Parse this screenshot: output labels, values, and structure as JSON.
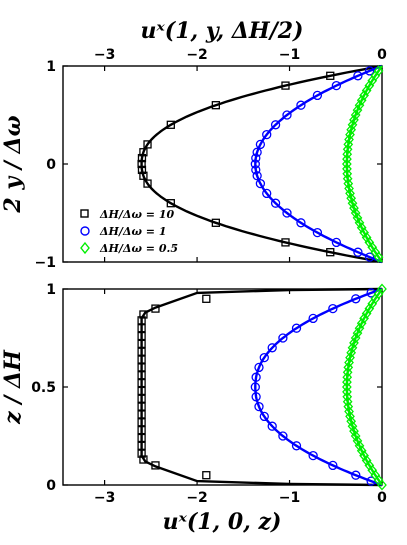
{
  "figure_labels": {
    "top_xlabel": "uˣ(1, y, ΔH/2)",
    "top_ylabel": "2 y / Δω",
    "bottom_xlabel": "uˣ(1, 0, z)",
    "bottom_ylabel": "z / ΔH"
  },
  "legend": {
    "items": [
      {
        "label": "ΔH/Δω = 10",
        "color": "#000000",
        "marker": "square"
      },
      {
        "label": "ΔH/Δω = 1",
        "color": "#0000ff",
        "marker": "circle"
      },
      {
        "label": "ΔH/Δω = 0.5",
        "color": "#00ee00",
        "marker": "diamond"
      }
    ]
  },
  "chart_data": [
    {
      "type": "line",
      "xlabel": "uˣ(1, y, ΔH/2)",
      "ylabel": "2 y / Δω",
      "xlim": [
        -3.45,
        0
      ],
      "ylim": [
        -1,
        1
      ],
      "x_ticks": [
        "-3",
        "-2",
        "-1",
        "0"
      ],
      "y_ticks": [
        "-1",
        "0",
        "1"
      ],
      "x_axis_position": "top",
      "grid": false,
      "legend_position": "bottom-left",
      "series": [
        {
          "name": "ΔH/Δω = 10",
          "color": "#000000",
          "marker": "square",
          "peak": -2.6,
          "curve_exponent": 2.3,
          "markers_y": [
            0,
            0.06,
            0.12,
            0.2,
            0.4,
            0.6,
            0.8,
            0.9,
            -0.06,
            -0.12,
            -0.2,
            -0.4,
            -0.6,
            -0.8,
            -0.9
          ]
        },
        {
          "name": "ΔH/Δω = 1",
          "color": "#0000ff",
          "marker": "circle",
          "peak": -1.37,
          "curve_exponent": 2,
          "markers_y": [
            0,
            0.06,
            0.12,
            0.2,
            0.3,
            0.4,
            0.5,
            0.6,
            0.7,
            0.8,
            0.9,
            0.95,
            -0.06,
            -0.12,
            -0.2,
            -0.3,
            -0.4,
            -0.5,
            -0.6,
            -0.7,
            -0.8,
            -0.9,
            -0.95
          ]
        },
        {
          "name": "ΔH/Δω = 0.5",
          "color": "#00ee00",
          "marker": "diamond",
          "peak": -0.38,
          "curve_exponent": 2,
          "markers_y": [
            0,
            0.05,
            0.1,
            0.15,
            0.2,
            0.25,
            0.3,
            0.35,
            0.4,
            0.45,
            0.5,
            0.55,
            0.6,
            0.65,
            0.7,
            0.75,
            0.8,
            0.85,
            0.9,
            0.95,
            -0.05,
            -0.1,
            -0.15,
            -0.2,
            -0.25,
            -0.3,
            -0.35,
            -0.4,
            -0.45,
            -0.5,
            -0.55,
            -0.6,
            -0.65,
            -0.7,
            -0.75,
            -0.8,
            -0.85,
            -0.9,
            -0.95
          ]
        }
      ]
    },
    {
      "type": "line",
      "xlabel": "uˣ(1, 0, z)",
      "ylabel": "z / ΔH",
      "xlim": [
        -3.45,
        0
      ],
      "ylim": [
        0,
        1
      ],
      "x_ticks": [
        "-3",
        "-2",
        "-1",
        "0"
      ],
      "y_ticks": [
        "0",
        "0.5",
        "1"
      ],
      "x_axis_position": "bottom",
      "grid": false,
      "series": [
        {
          "name": "ΔH/Δω = 10",
          "color": "#000000",
          "marker": "square",
          "line_points": [
            [
              0,
              1
            ],
            [
              -1.0,
              0.995
            ],
            [
              -2.0,
              0.98
            ],
            [
              -2.45,
              0.905
            ],
            [
              -2.56,
              0.88
            ],
            [
              -2.6,
              0.85
            ],
            [
              -2.6,
              0.15
            ],
            [
              -2.56,
              0.12
            ],
            [
              -2.45,
              0.095
            ],
            [
              -2.0,
              0.02
            ],
            [
              -1.0,
              0.005
            ],
            [
              0,
              0
            ]
          ],
          "markers": [
            [
              -1.9,
              0.95
            ],
            [
              -2.45,
              0.9
            ],
            [
              -2.58,
              0.87
            ],
            [
              -2.6,
              0.84
            ],
            [
              -2.6,
              0.8
            ],
            [
              -2.6,
              0.76
            ],
            [
              -2.6,
              0.72
            ],
            [
              -2.6,
              0.68
            ],
            [
              -2.6,
              0.64
            ],
            [
              -2.6,
              0.6
            ],
            [
              -2.6,
              0.56
            ],
            [
              -2.6,
              0.52
            ],
            [
              -2.6,
              0.48
            ],
            [
              -2.6,
              0.44
            ],
            [
              -2.6,
              0.4
            ],
            [
              -2.6,
              0.36
            ],
            [
              -2.6,
              0.32
            ],
            [
              -2.6,
              0.28
            ],
            [
              -2.6,
              0.24
            ],
            [
              -2.6,
              0.2
            ],
            [
              -2.6,
              0.16
            ],
            [
              -2.58,
              0.13
            ],
            [
              -2.45,
              0.1
            ],
            [
              -1.9,
              0.05
            ]
          ]
        },
        {
          "name": "ΔH/Δω = 1",
          "color": "#0000ff",
          "marker": "circle",
          "peak": -1.37,
          "curve_exponent": 2.2,
          "markers_z": [
            0.02,
            0.05,
            0.1,
            0.15,
            0.2,
            0.25,
            0.3,
            0.35,
            0.4,
            0.45,
            0.5,
            0.55,
            0.6,
            0.65,
            0.7,
            0.75,
            0.8,
            0.85,
            0.9,
            0.95,
            0.98
          ]
        },
        {
          "name": "ΔH/Δω = 0.5",
          "color": "#00ee00",
          "marker": "diamond",
          "peak": -0.38,
          "curve_exponent": 2,
          "markers_z": [
            0,
            0.025,
            0.05,
            0.075,
            0.1,
            0.125,
            0.15,
            0.175,
            0.2,
            0.225,
            0.25,
            0.275,
            0.3,
            0.325,
            0.35,
            0.375,
            0.4,
            0.425,
            0.45,
            0.475,
            0.5,
            0.525,
            0.55,
            0.575,
            0.6,
            0.625,
            0.65,
            0.675,
            0.7,
            0.725,
            0.75,
            0.775,
            0.8,
            0.825,
            0.85,
            0.875,
            0.9,
            0.925,
            0.95,
            0.975,
            1
          ]
        }
      ]
    }
  ]
}
